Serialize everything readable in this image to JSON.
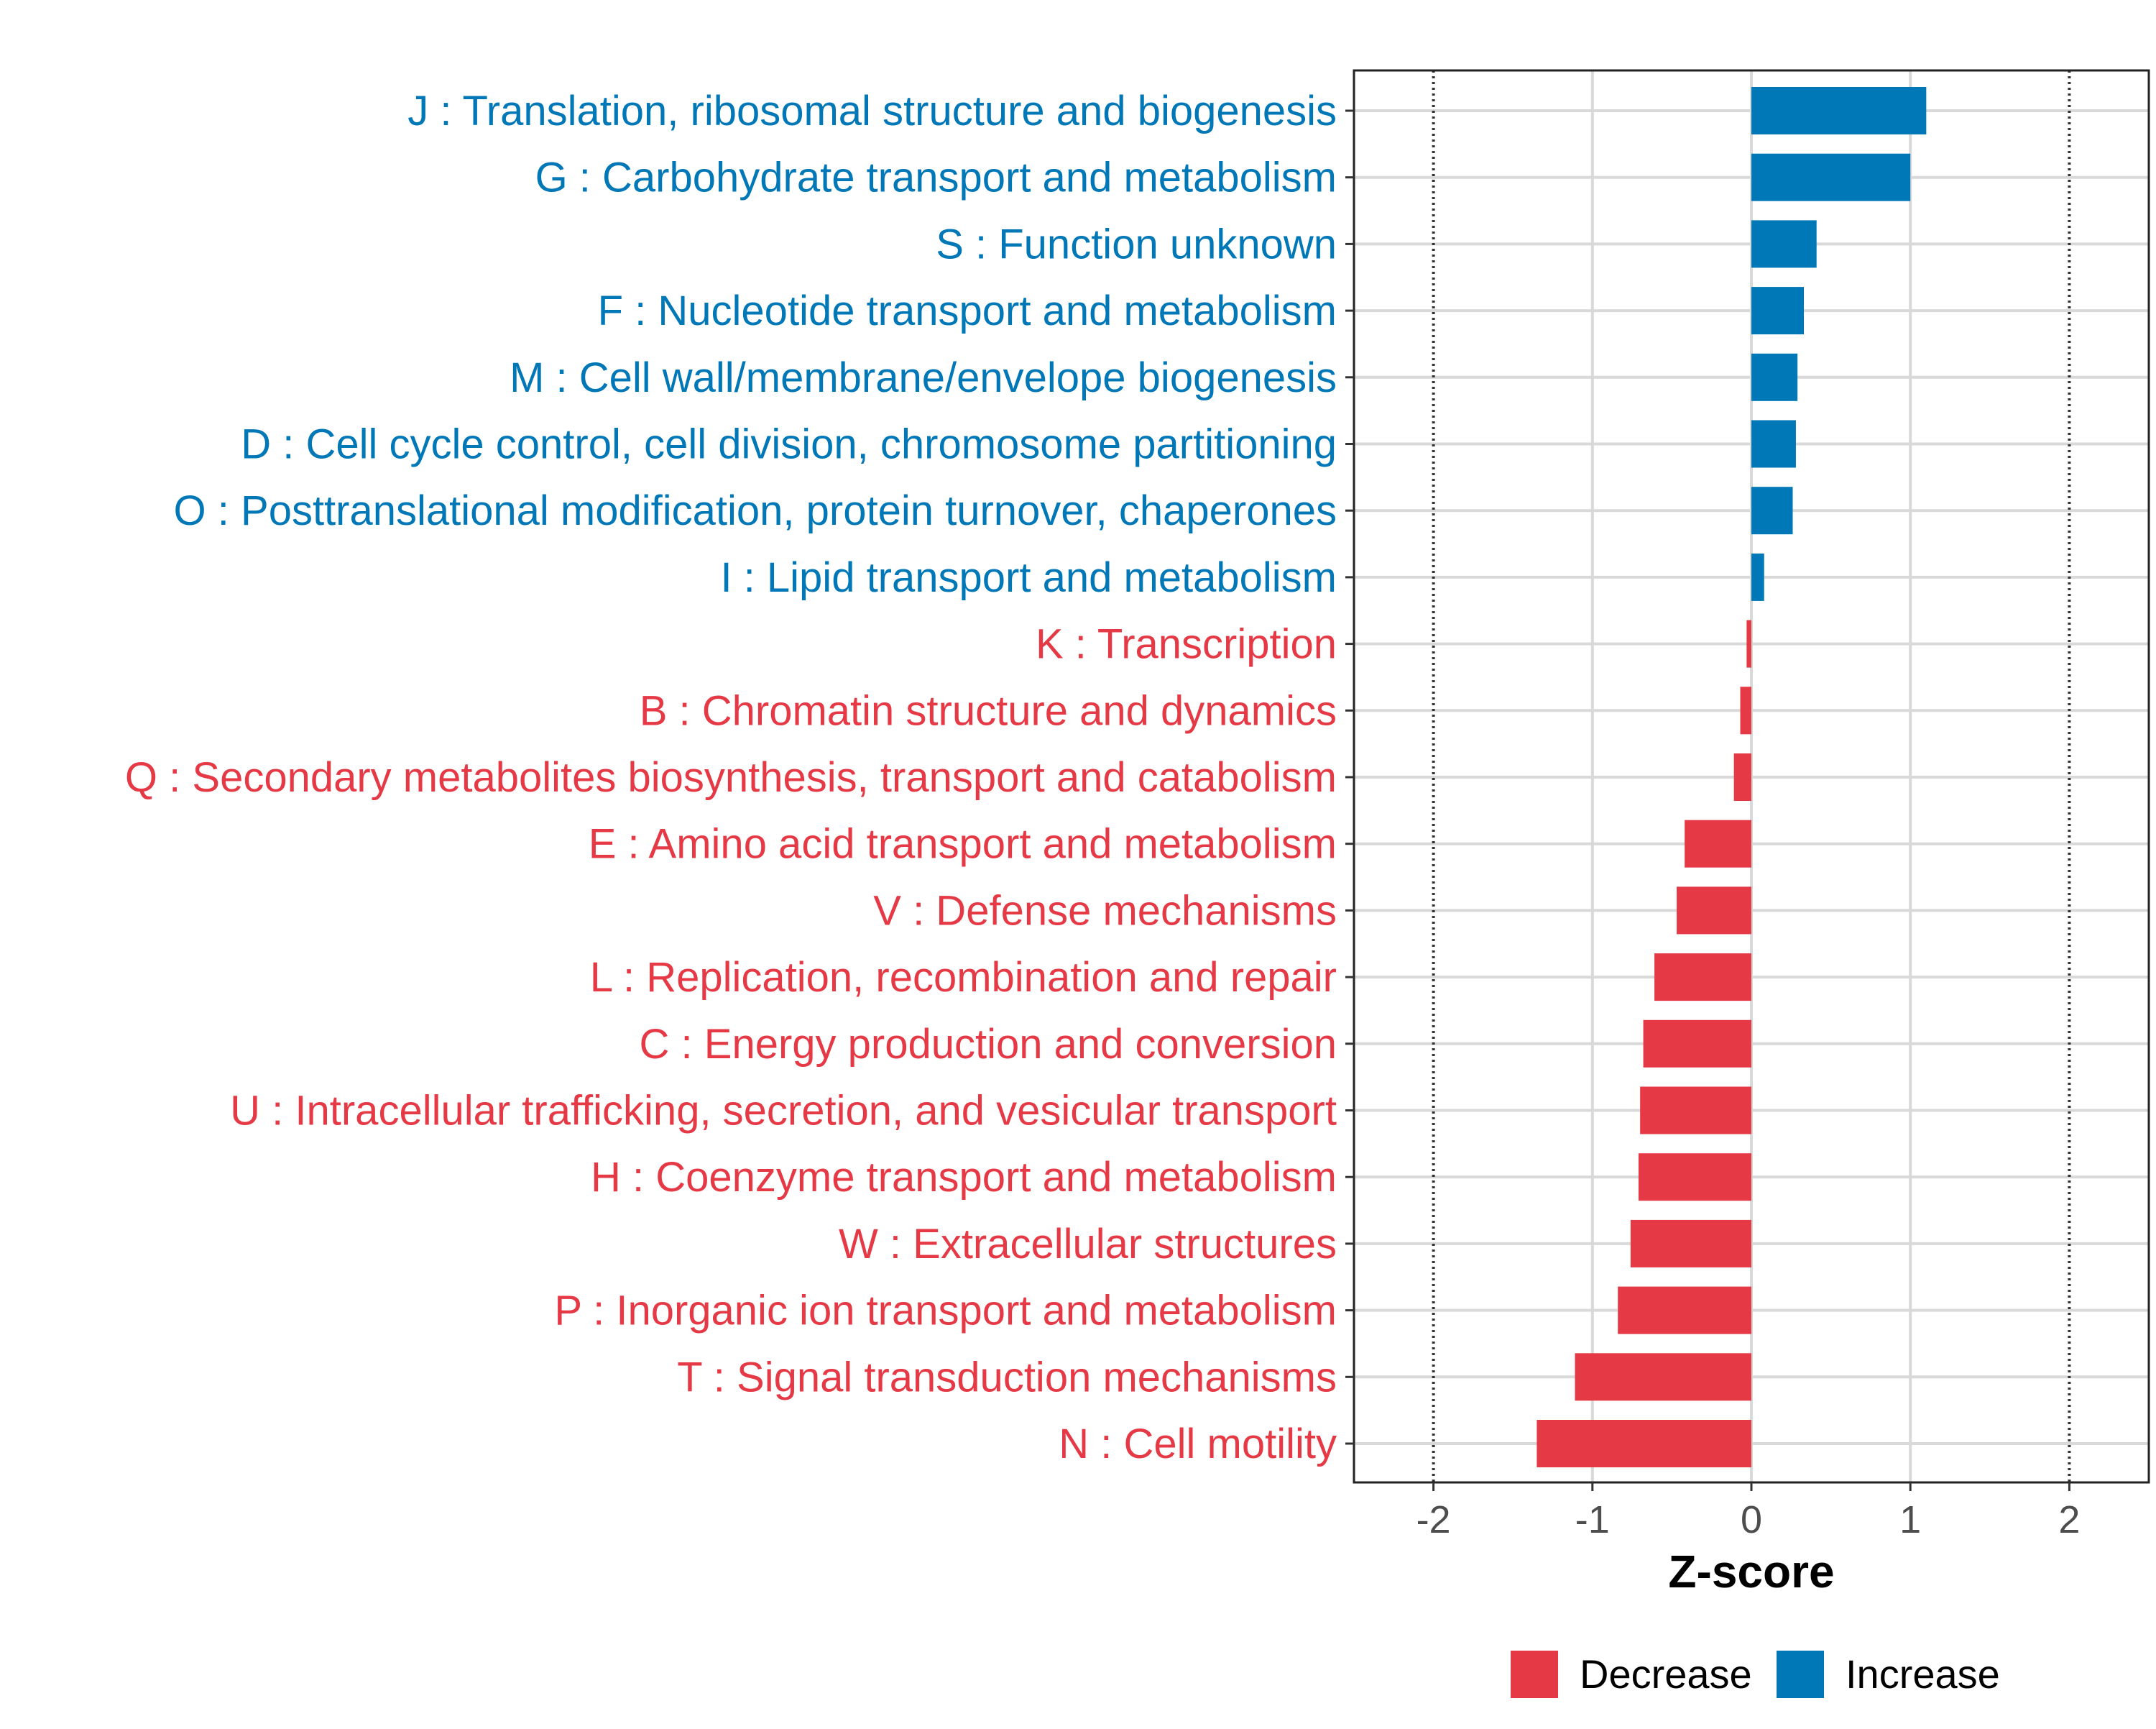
{
  "chart_data": {
    "type": "bar",
    "orientation": "horizontal",
    "title": "",
    "xlabel": "Z-score",
    "ylabel": "",
    "xlim": [
      -2.5,
      2.5
    ],
    "xticks": [
      -2,
      -1,
      0,
      1,
      2
    ],
    "xtick_labels": [
      "-2",
      "-1",
      "0",
      "1",
      "2"
    ],
    "reference_lines": [
      -2,
      2
    ],
    "grid": true,
    "legend_position": "bottom",
    "colors": {
      "Decrease": "#E63946",
      "Increase": "#0077B6"
    },
    "legend": [
      {
        "name": "Decrease",
        "color": "#E63946"
      },
      {
        "name": "Increase",
        "color": "#0077B6"
      }
    ],
    "categories": [
      "J : Translation, ribosomal structure and biogenesis",
      "G : Carbohydrate transport and metabolism",
      "S : Function unknown",
      "F : Nucleotide transport and metabolism",
      "M : Cell wall/membrane/envelope biogenesis",
      "D : Cell cycle control, cell division, chromosome partitioning",
      "O : Posttranslational modification, protein turnover, chaperones",
      "I : Lipid transport and metabolism",
      "K : Transcription",
      "B : Chromatin structure and dynamics",
      "Q : Secondary metabolites biosynthesis, transport and catabolism",
      "E : Amino acid transport and metabolism",
      "V : Defense mechanisms",
      "L : Replication, recombination and repair",
      "C : Energy production and conversion",
      "U : Intracellular trafficking, secretion, and vesicular transport",
      "H : Coenzyme transport and metabolism",
      "W : Extracellular structures",
      "P : Inorganic ion transport and metabolism",
      "T : Signal transduction mechanisms",
      "N : Cell motility"
    ],
    "values": [
      1.1,
      1.0,
      0.41,
      0.33,
      0.29,
      0.28,
      0.26,
      0.08,
      -0.03,
      -0.07,
      -0.11,
      -0.42,
      -0.47,
      -0.61,
      -0.68,
      -0.7,
      -0.71,
      -0.76,
      -0.84,
      -1.11,
      -1.35
    ],
    "groups": [
      "Increase",
      "Increase",
      "Increase",
      "Increase",
      "Increase",
      "Increase",
      "Increase",
      "Increase",
      "Decrease",
      "Decrease",
      "Decrease",
      "Decrease",
      "Decrease",
      "Decrease",
      "Decrease",
      "Decrease",
      "Decrease",
      "Decrease",
      "Decrease",
      "Decrease",
      "Decrease"
    ]
  }
}
